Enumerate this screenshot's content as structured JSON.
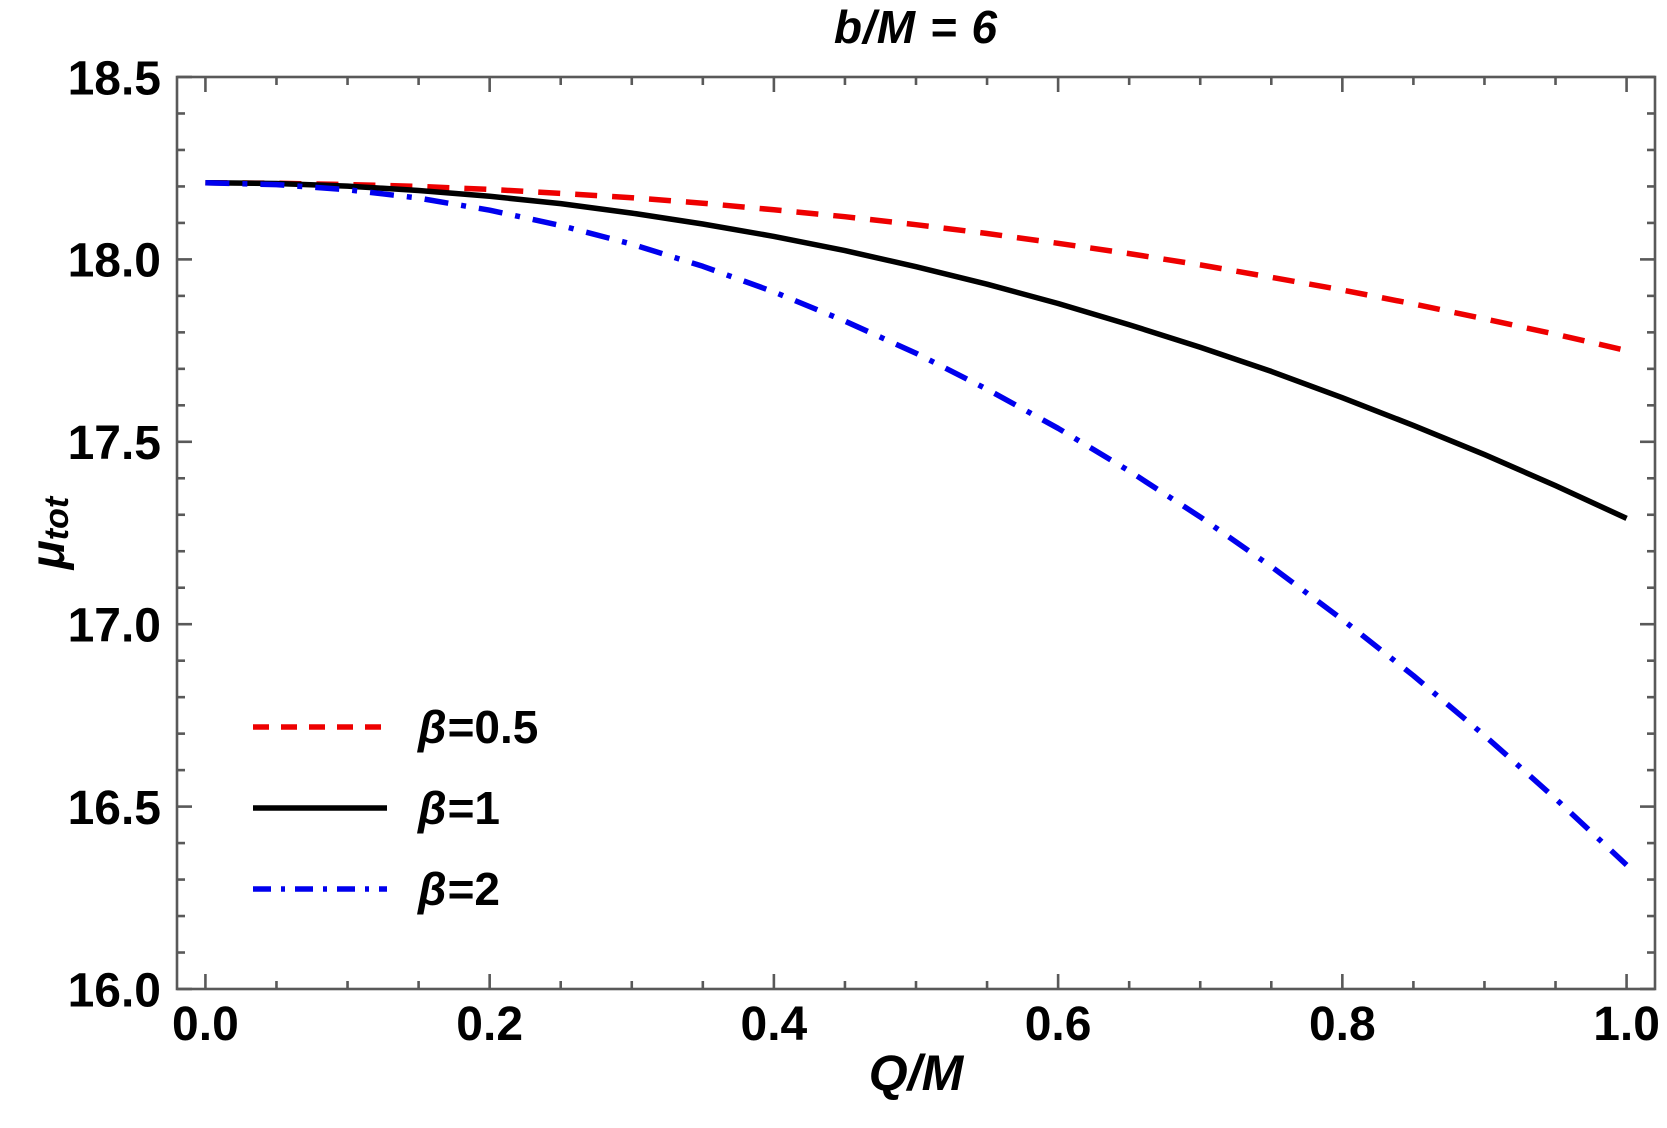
{
  "chart_data": {
    "type": "line",
    "title": "b/M = 6",
    "xlabel": "Q/M",
    "ylabel": {
      "symbol": "μ",
      "subscript": "tot"
    },
    "xlim": [
      -0.02,
      1.02
    ],
    "ylim": [
      16.0,
      18.5
    ],
    "grid": false,
    "frame": true,
    "frame_color": "#595959",
    "x_major_ticks": [
      0.0,
      0.2,
      0.4,
      0.6,
      0.8,
      1.0
    ],
    "x_tick_labels": [
      "0.0",
      "0.2",
      "0.4",
      "0.6",
      "0.8",
      "1.0"
    ],
    "x_minor_step": 0.05,
    "y_major_ticks": [
      16.0,
      16.5,
      17.0,
      17.5,
      18.0,
      18.5
    ],
    "y_tick_labels": [
      "16.0",
      "16.5",
      "17.0",
      "17.5",
      "18.0",
      "18.5"
    ],
    "y_minor_step": 0.1,
    "legend_position": "lower-left-inside",
    "x": [
      0,
      0.05,
      0.1,
      0.15,
      0.2,
      0.25,
      0.3,
      0.35,
      0.4,
      0.45,
      0.5,
      0.55,
      0.6,
      0.65,
      0.7,
      0.75,
      0.8,
      0.85,
      0.9,
      0.95,
      1.0
    ],
    "series": [
      {
        "name": "β=0.5",
        "beta": 0.5,
        "color": "#ee0000",
        "style": "dashed",
        "values": [
          18.21,
          18.209,
          18.205,
          18.2,
          18.192,
          18.181,
          18.169,
          18.154,
          18.136,
          18.117,
          18.095,
          18.071,
          18.044,
          18.016,
          17.985,
          17.951,
          17.916,
          17.878,
          17.837,
          17.795,
          17.75
        ]
      },
      {
        "name": "β=1",
        "beta": 1,
        "color": "#000000",
        "style": "solid",
        "values": [
          18.21,
          18.208,
          18.201,
          18.189,
          18.173,
          18.153,
          18.127,
          18.097,
          18.063,
          18.024,
          17.98,
          17.932,
          17.879,
          17.821,
          17.759,
          17.693,
          17.621,
          17.545,
          17.465,
          17.38,
          17.29
        ]
      },
      {
        "name": "β=2",
        "beta": 2,
        "color": "#0000ee",
        "style": "dashdot",
        "values": [
          18.21,
          18.205,
          18.191,
          18.168,
          18.135,
          18.093,
          18.042,
          17.981,
          17.911,
          17.831,
          17.743,
          17.644,
          17.537,
          17.42,
          17.294,
          17.158,
          17.013,
          16.859,
          16.695,
          16.522,
          16.34
        ]
      }
    ],
    "legend": [
      {
        "symbol": "β",
        "rest": "=0.5"
      },
      {
        "symbol": "β",
        "rest": "=1"
      },
      {
        "symbol": "β",
        "rest": "=2"
      }
    ]
  }
}
